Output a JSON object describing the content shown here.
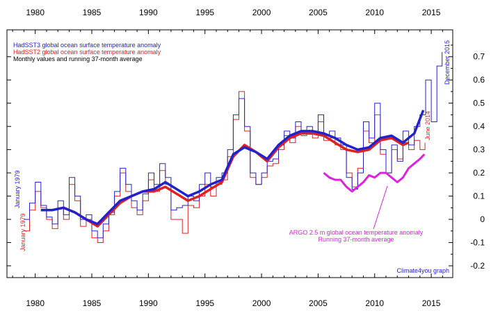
{
  "chart_data": {
    "type": "line",
    "title": "",
    "xlabel": "",
    "ylabel": "",
    "xlim": [
      1977.5,
      2016.9
    ],
    "ylim": [
      -0.2,
      0.75
    ],
    "x_ticks": [
      "1980",
      "1985",
      "1990",
      "1995",
      "2000",
      "2005",
      "2010",
      "2015"
    ],
    "y_ticks": [
      "-0.2",
      "-0.1",
      "0",
      "0.1",
      "0.2",
      "0.3",
      "0.4",
      "0.5",
      "0.6",
      "0.7"
    ],
    "colors": {
      "hadsst3": "#2222cc",
      "hadsst2": "#dd2222",
      "argo": "#dd22dd",
      "notes": "#000000"
    },
    "legend": {
      "placement": "top-left",
      "entries": [
        "HadSST3 global ocean surface temperature anomaly",
        "HadSST2 global ocean surface temperature anomaly",
        "Monthly values and running 37-month average"
      ]
    },
    "annotations": {
      "start_hadsst3": "January 1979",
      "start_hadsst2": "January 1979",
      "end_hadsst3": "December 2015",
      "end_hadsst2": "June 2014",
      "argo_line1": "ARGO 2.5 m global ocean temperature anomaly",
      "argo_line2": "Running 37-month average",
      "credit": "Climate4you graph"
    },
    "series": [
      {
        "name": "HadSST3 global ocean surface temperature anomaly",
        "kind": "monthly",
        "x": [
          1979.0,
          1979.5,
          1980.0,
          1980.5,
          1981.0,
          1981.5,
          1982.0,
          1982.5,
          1983.0,
          1983.5,
          1984.0,
          1984.5,
          1985.0,
          1985.5,
          1986.0,
          1986.5,
          1987.0,
          1987.5,
          1988.0,
          1988.5,
          1989.0,
          1989.5,
          1990.0,
          1990.5,
          1991.0,
          1991.5,
          1992.0,
          1992.5,
          1993.0,
          1993.5,
          1994.0,
          1994.5,
          1995.0,
          1995.5,
          1996.0,
          1996.5,
          1997.0,
          1997.5,
          1998.0,
          1998.5,
          1999.0,
          1999.5,
          2000.0,
          2000.5,
          2001.0,
          2001.5,
          2002.0,
          2002.5,
          2003.0,
          2003.5,
          2004.0,
          2004.5,
          2005.0,
          2005.5,
          2006.0,
          2006.5,
          2007.0,
          2007.5,
          2008.0,
          2008.5,
          2009.0,
          2009.5,
          2010.0,
          2010.5,
          2011.0,
          2011.5,
          2012.0,
          2012.5,
          2013.0,
          2013.5,
          2014.0,
          2014.5,
          2015.0,
          2015.5,
          2015.96
        ],
        "y": [
          0.0,
          0.07,
          0.16,
          0.06,
          0.01,
          -0.02,
          0.08,
          0.02,
          0.18,
          0.1,
          0.0,
          0.02,
          -0.05,
          -0.08,
          -0.02,
          0.03,
          0.12,
          0.22,
          0.15,
          0.08,
          0.04,
          0.11,
          0.2,
          0.15,
          0.24,
          0.18,
          0.04,
          0.05,
          0.06,
          0.1,
          0.08,
          0.15,
          0.2,
          0.14,
          0.18,
          0.2,
          0.3,
          0.45,
          0.52,
          0.4,
          0.2,
          0.15,
          0.2,
          0.25,
          0.26,
          0.32,
          0.38,
          0.35,
          0.42,
          0.38,
          0.4,
          0.37,
          0.45,
          0.36,
          0.38,
          0.35,
          0.32,
          0.18,
          0.13,
          0.2,
          0.42,
          0.35,
          0.5,
          0.3,
          0.2,
          0.32,
          0.25,
          0.38,
          0.32,
          0.4,
          0.45,
          0.6,
          0.42,
          0.66,
          0.72
        ]
      },
      {
        "name": "HadSST3 running 37-month average",
        "kind": "average",
        "x": [
          1980.5,
          1981.5,
          1982.5,
          1983.5,
          1984.5,
          1985.5,
          1986.5,
          1987.5,
          1988.5,
          1989.5,
          1990.5,
          1991.5,
          1992.5,
          1993.5,
          1994.5,
          1995.5,
          1996.5,
          1997.5,
          1998.5,
          1999.5,
          2000.5,
          2001.5,
          2002.5,
          2003.5,
          2004.5,
          2005.5,
          2006.5,
          2007.5,
          2008.5,
          2009.5,
          2010.5,
          2011.5,
          2012.5,
          2013.5,
          2014.3
        ],
        "y": [
          0.04,
          0.04,
          0.05,
          0.03,
          0.0,
          -0.02,
          0.03,
          0.08,
          0.1,
          0.12,
          0.13,
          0.16,
          0.13,
          0.1,
          0.12,
          0.15,
          0.17,
          0.28,
          0.31,
          0.29,
          0.26,
          0.32,
          0.36,
          0.38,
          0.38,
          0.37,
          0.35,
          0.32,
          0.3,
          0.31,
          0.35,
          0.36,
          0.33,
          0.37,
          0.47
        ]
      },
      {
        "name": "HadSST2 global ocean surface temperature anomaly",
        "kind": "monthly",
        "x": [
          1979.0,
          1979.5,
          1980.0,
          1980.5,
          1981.0,
          1981.5,
          1982.0,
          1982.5,
          1983.0,
          1983.5,
          1984.0,
          1984.5,
          1985.0,
          1985.5,
          1986.0,
          1986.5,
          1987.0,
          1987.5,
          1988.0,
          1988.5,
          1989.0,
          1989.5,
          1990.0,
          1990.5,
          1991.0,
          1991.5,
          1992.0,
          1992.5,
          1993.0,
          1993.5,
          1994.0,
          1994.5,
          1995.0,
          1995.5,
          1996.0,
          1996.5,
          1997.0,
          1997.5,
          1998.0,
          1998.5,
          1999.0,
          1999.5,
          2000.0,
          2000.5,
          2001.0,
          2001.5,
          2002.0,
          2002.5,
          2003.0,
          2003.5,
          2004.0,
          2004.5,
          2005.0,
          2005.5,
          2006.0,
          2006.5,
          2007.0,
          2007.5,
          2008.0,
          2008.5,
          2009.0,
          2009.5,
          2010.0,
          2010.5,
          2011.0,
          2011.5,
          2012.0,
          2012.5,
          2013.0,
          2013.5,
          2014.0,
          2014.45
        ],
        "y": [
          -0.05,
          0.04,
          0.12,
          0.05,
          0.0,
          -0.04,
          0.05,
          0.0,
          0.15,
          0.08,
          -0.03,
          0.0,
          -0.08,
          -0.1,
          -0.05,
          0.02,
          0.1,
          0.2,
          0.12,
          0.05,
          0.02,
          0.08,
          0.17,
          0.12,
          0.21,
          0.15,
          0.0,
          0.0,
          -0.06,
          0.06,
          0.05,
          0.1,
          0.15,
          0.1,
          0.15,
          0.17,
          0.27,
          0.43,
          0.55,
          0.38,
          0.18,
          0.15,
          0.18,
          0.23,
          0.24,
          0.3,
          0.36,
          0.33,
          0.4,
          0.36,
          0.38,
          0.35,
          0.42,
          0.34,
          0.35,
          0.32,
          0.3,
          0.2,
          0.14,
          0.22,
          0.38,
          0.33,
          0.45,
          0.28,
          0.2,
          0.3,
          0.26,
          0.33,
          0.3,
          0.34,
          0.3,
          0.33
        ]
      },
      {
        "name": "HadSST2 running 37-month average",
        "kind": "average",
        "x": [
          1980.5,
          1981.5,
          1982.5,
          1983.5,
          1984.5,
          1985.5,
          1986.5,
          1987.5,
          1988.5,
          1989.5,
          1990.5,
          1991.5,
          1992.5,
          1993.5,
          1994.5,
          1995.5,
          1996.5,
          1997.5,
          1998.5,
          1999.5,
          2000.5,
          2001.5,
          2002.5,
          2003.5,
          2004.5,
          2005.5,
          2006.5,
          2007.5,
          2008.5,
          2009.5,
          2010.5,
          2011.5,
          2012.5,
          2013.0
        ],
        "y": [
          0.04,
          0.04,
          0.05,
          0.03,
          0.0,
          -0.03,
          0.02,
          0.07,
          0.1,
          0.12,
          0.12,
          0.14,
          0.11,
          0.08,
          0.1,
          0.13,
          0.16,
          0.27,
          0.32,
          0.29,
          0.25,
          0.31,
          0.35,
          0.37,
          0.37,
          0.36,
          0.33,
          0.3,
          0.29,
          0.3,
          0.34,
          0.35,
          0.32,
          0.33
        ]
      },
      {
        "name": "ARGO 2.5 m global ocean temperature anomaly",
        "kind": "average",
        "x": [
          2005.5,
          2006.0,
          2006.5,
          2007.0,
          2007.5,
          2008.0,
          2008.5,
          2009.0,
          2009.5,
          2010.0,
          2010.5,
          2011.0,
          2011.5,
          2012.0,
          2012.5,
          2013.0,
          2013.5,
          2014.0,
          2014.4
        ],
        "y": [
          0.2,
          0.18,
          0.17,
          0.17,
          0.14,
          0.12,
          0.14,
          0.16,
          0.19,
          0.18,
          0.2,
          0.2,
          0.18,
          0.16,
          0.18,
          0.22,
          0.24,
          0.26,
          0.28
        ]
      }
    ]
  }
}
